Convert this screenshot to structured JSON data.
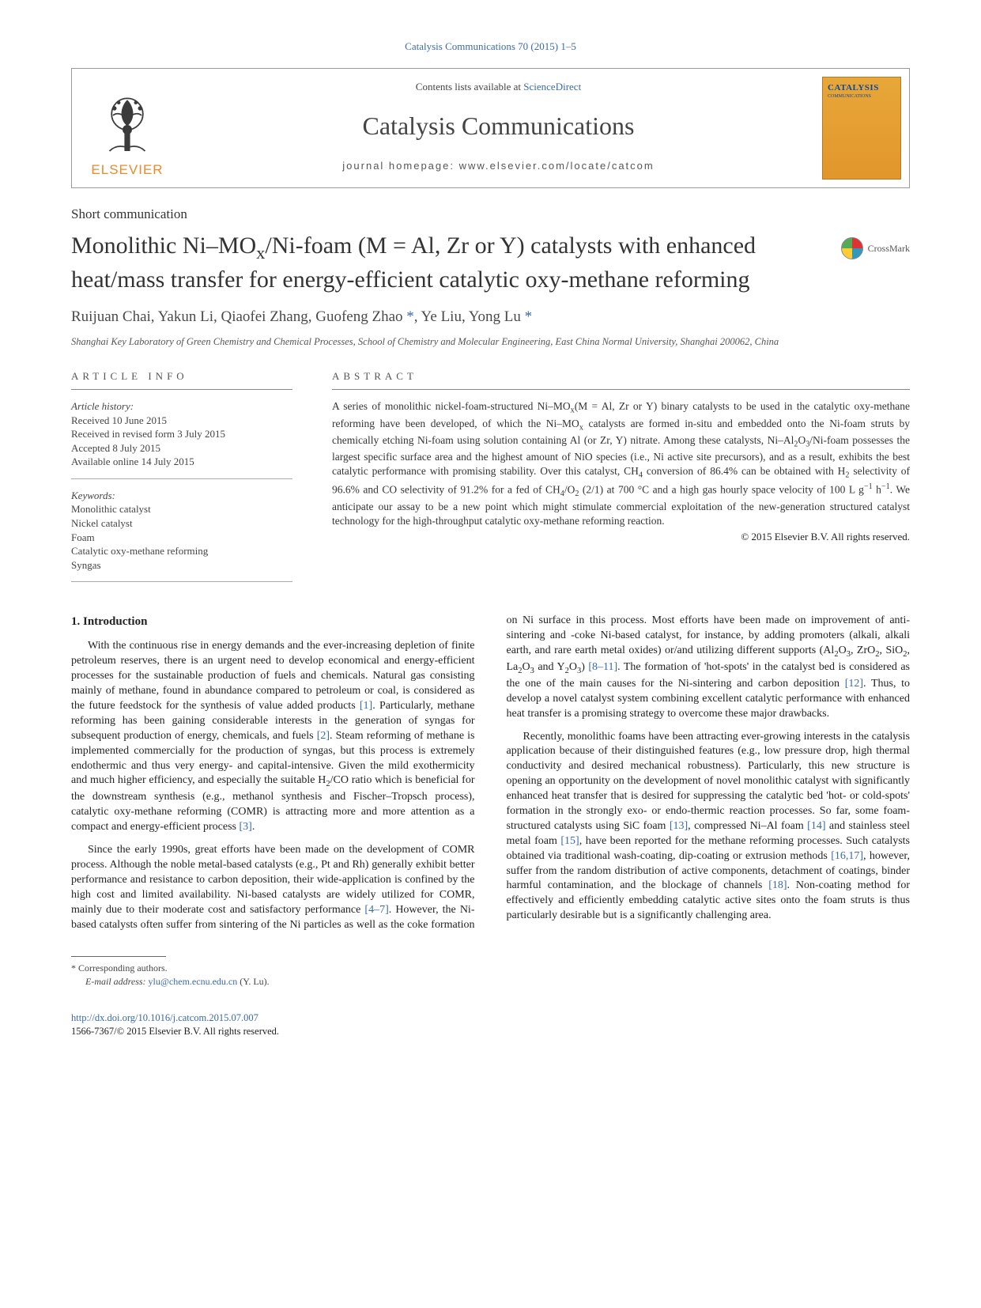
{
  "citation": "Catalysis Communications 70 (2015) 1–5",
  "header": {
    "contents_prefix": "Contents lists available at ",
    "contents_link": "ScienceDirect",
    "journal": "Catalysis Communications",
    "homepage_prefix": "journal homepage: ",
    "homepage": "www.elsevier.com/locate/catcom",
    "publisher": "ELSEVIER",
    "cover_title": "CATALYSIS",
    "cover_sub": "COMMUNICATIONS"
  },
  "section_label": "Short communication",
  "title_html": "Monolithic Ni–MO<sub>x</sub>/Ni-foam (M = Al, Zr or Y) catalysts with enhanced heat/mass transfer for energy-efficient catalytic oxy-methane reforming",
  "crossmark": "CrossMark",
  "authors_html": "Ruijuan Chai, Yakun Li, Qiaofei Zhang, Guofeng Zhao <span class=\"star\">*</span>, Ye Liu, Yong Lu <span class=\"star\">*</span>",
  "affiliation": "Shanghai Key Laboratory of Green Chemistry and Chemical Processes, School of Chemistry and Molecular Engineering, East China Normal University, Shanghai 200062, China",
  "info_heading": "ARTICLE INFO",
  "abstract_heading": "ABSTRACT",
  "history": {
    "label": "Article history:",
    "lines": [
      "Received 10 June 2015",
      "Received in revised form 3 July 2015",
      "Accepted 8 July 2015",
      "Available online 14 July 2015"
    ]
  },
  "keywords": {
    "label": "Keywords:",
    "items": [
      "Monolithic catalyst",
      "Nickel catalyst",
      "Foam",
      "Catalytic oxy-methane reforming",
      "Syngas"
    ]
  },
  "abstract_html": "A series of monolithic nickel-foam-structured Ni–MO<sub>x</sub>(M = Al, Zr or Y) binary catalysts to be used in the catalytic oxy-methane reforming have been developed, of which the Ni–MO<sub>x</sub> catalysts are formed in-situ and embedded onto the Ni-foam struts by chemically etching Ni-foam using solution containing Al (or Zr, Y) nitrate. Among these catalysts, Ni–Al<sub>2</sub>O<sub>3</sub>/Ni-foam possesses the largest specific surface area and the highest amount of NiO species (i.e., Ni active site precursors), and as a result, exhibits the best catalytic performance with promising stability. Over this catalyst, CH<sub>4</sub> conversion of 86.4% can be obtained with H<sub>2</sub> selectivity of 96.6% and CO selectivity of 91.2% for a fed of CH<sub>4</sub>/O<sub>2</sub> (2/1) at 700 °C and a high gas hourly space velocity of 100 L g<sup>−1</sup> h<sup>−1</sup>. We anticipate our assay to be a new point which might stimulate commercial exploitation of the new-generation structured catalyst technology for the high-throughput catalytic oxy-methane reforming reaction.",
  "copyright": "© 2015 Elsevier B.V. All rights reserved.",
  "intro_heading": "1. Introduction",
  "para1_html": "With the continuous rise in energy demands and the ever-increasing depletion of finite petroleum reserves, there is an urgent need to develop economical and energy-efficient processes for the sustainable production of fuels and chemicals. Natural gas consisting mainly of methane, found in abundance compared to petroleum or coal, is considered as the future feedstock for the synthesis of value added products <span class=\"ref\">[1]</span>. Particularly, methane reforming has been gaining considerable interests in the generation of syngas for subsequent production of energy, chemicals, and fuels <span class=\"ref\">[2]</span>. Steam reforming of methane is implemented commercially for the production of syngas, but this process is extremely endothermic and thus very energy- and capital-intensive. Given the mild exothermicity and much higher efficiency, and especially the suitable H<sub>2</sub>/CO ratio which is beneficial for the downstream synthesis (e.g., methanol synthesis and Fischer–Tropsch process), catalytic oxy-methane reforming (COMR) is attracting more and more attention as a compact and energy-efficient process <span class=\"ref\">[3]</span>.",
  "para2_html": "Since the early 1990s, great efforts have been made on the development of COMR process. Although the noble metal-based catalysts (e.g., Pt and Rh) generally exhibit better performance and resistance to carbon deposition, their wide-application is confined by the high cost and limited availability. Ni-based catalysts are widely utilized for COMR, mainly due to their moderate cost and satisfactory performance <span class=\"ref\">[4–7]</span>. However, the Ni-based catalysts often suffer from sintering of the Ni particles as well as the coke formation on Ni surface in this process. Most efforts have been made on improvement of anti-sintering and -coke Ni-based catalyst, for instance, by adding promoters (alkali, alkali earth, and rare earth metal oxides) or/and utilizing different supports (Al<sub>2</sub>O<sub>3</sub>, ZrO<sub>2</sub>, SiO<sub>2</sub>, La<sub>2</sub>O<sub>3</sub> and Y<sub>2</sub>O<sub>3</sub>) <span class=\"ref\">[8–11]</span>. The formation of 'hot-spots' in the catalyst bed is considered as the one of the main causes for the Ni-sintering and carbon deposition <span class=\"ref\">[12]</span>. Thus, to develop a novel catalyst system combining excellent catalytic performance with enhanced heat transfer is a promising strategy to overcome these major drawbacks.",
  "para3_html": "Recently, monolithic foams have been attracting ever-growing interests in the catalysis application because of their distinguished features (e.g., low pressure drop, high thermal conductivity and desired mechanical robustness). Particularly, this new structure is opening an opportunity on the development of novel monolithic catalyst with significantly enhanced heat transfer that is desired for suppressing the catalytic bed 'hot- or cold-spots' formation in the strongly exo- or endo-thermic reaction processes. So far, some foam-structured catalysts using SiC foam <span class=\"ref\">[13]</span>, compressed Ni–Al foam <span class=\"ref\">[14]</span> and stainless steel metal foam <span class=\"ref\">[15]</span>, have been reported for the methane reforming processes. Such catalysts obtained via traditional wash-coating, dip-coating or extrusion methods <span class=\"ref\">[16,17]</span>, however, suffer from the random distribution of active components, detachment of coatings, binder harmful contamination, and the blockage of channels <span class=\"ref\">[18]</span>. Non-coating method for effectively and efficiently embedding catalytic active sites onto the foam struts is thus particularly desirable but is a significantly challenging area.",
  "footnote": {
    "corr": "* Corresponding authors.",
    "email_label": "E-mail address: ",
    "email": "ylu@chem.ecnu.edu.cn",
    "email_suffix": " (Y. Lu)."
  },
  "footer": {
    "doi": "http://dx.doi.org/10.1016/j.catcom.2015.07.007",
    "issn_line": "1566-7367/© 2015 Elsevier B.V. All rights reserved."
  }
}
